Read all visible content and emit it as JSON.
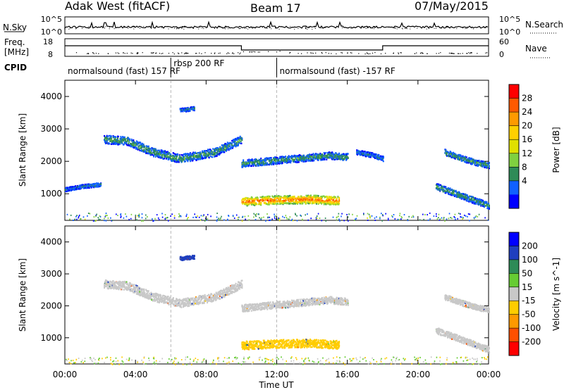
{
  "header": {
    "station": "Adak West (fitACF)",
    "beam": "Beam 17",
    "date": "07/May/2015"
  },
  "side_labels": {
    "nsky": "N.Sky",
    "nsearch": "N.Search",
    "freq_line1": "Freq.",
    "freq_line2": "[MHz]",
    "nave": "Nave",
    "cpid": "CPID"
  },
  "cpid_segments": [
    {
      "label": "normalsound (fast) 157 RF",
      "start_hour": 0,
      "end_hour": 6
    },
    {
      "label": "rbsp 200 RF",
      "start_hour": 6,
      "end_hour": 12
    },
    {
      "label": "normalsound (fast) -157 RF",
      "start_hour": 12,
      "end_hour": 24
    }
  ],
  "noise_axis": {
    "left_ticks": [
      "10^5",
      "10^0"
    ],
    "right_ticks": [
      "10^5",
      "10^0"
    ]
  },
  "freq_axis": {
    "left_ticks": [
      "18",
      "8"
    ],
    "right_ticks": [
      "60",
      "0"
    ]
  },
  "power_colorbar": {
    "label": "Power [dB]",
    "ticks": [
      "28",
      "24",
      "20",
      "16",
      "12",
      "8",
      "4"
    ],
    "colors": [
      "#ff0000",
      "#ff5a00",
      "#ff9a00",
      "#ffd000",
      "#e0e000",
      "#80d040",
      "#2e8b57",
      "#1060ff",
      "#0000ff"
    ]
  },
  "velocity_colorbar": {
    "label": "Velocity [m s^-1]",
    "ticks": [
      "200",
      "100",
      "50",
      "15",
      "-15",
      "-50",
      "-100",
      "-200"
    ],
    "colors": [
      "#0000ff",
      "#1f3fbf",
      "#2e8b57",
      "#66cc33",
      "#c8c8c8",
      "#ffcc00",
      "#ff9900",
      "#ff5000",
      "#ff0000"
    ]
  },
  "chart_data": [
    {
      "type": "heatmap",
      "title": "",
      "xlabel": "",
      "ylabel": "Slant Range [km]",
      "xlim": [
        0,
        24
      ],
      "ylim": [
        180,
        4500
      ],
      "x_ticks": [
        "00:00",
        "04:00",
        "08:00",
        "12:00",
        "16:00",
        "20:00",
        "00:00"
      ],
      "y_ticks": [
        1000,
        2000,
        3000,
        4000
      ],
      "colorbar": "Power [dB]",
      "bands": [
        {
          "x": [
            2.2,
            3.5,
            5,
            6.5,
            8.5,
            10
          ],
          "y": [
            2700,
            2650,
            2300,
            2100,
            2300,
            2700
          ],
          "width": 260,
          "value": 8
        },
        {
          "x": [
            0,
            1,
            2
          ],
          "y": [
            1150,
            1250,
            1300
          ],
          "width": 120,
          "value": 6
        },
        {
          "x": [
            10,
            12,
            14,
            15,
            16
          ],
          "y": [
            1950,
            2050,
            2150,
            2200,
            2150
          ],
          "width": 220,
          "value": 8
        },
        {
          "x": [
            10,
            12,
            14,
            15.5
          ],
          "y": [
            780,
            830,
            850,
            800
          ],
          "width": 260,
          "value": 22
        },
        {
          "x": [
            16.5,
            17.5,
            18
          ],
          "y": [
            2300,
            2200,
            2100
          ],
          "width": 150,
          "value": 6
        },
        {
          "x": [
            21.5,
            22.5,
            23.5,
            24
          ],
          "y": [
            2300,
            2100,
            1950,
            1900
          ],
          "width": 180,
          "value": 8
        },
        {
          "x": [
            21,
            22,
            23,
            24
          ],
          "y": [
            1250,
            1050,
            850,
            650
          ],
          "width": 200,
          "value": 8
        },
        {
          "x": [
            6.5,
            7.3
          ],
          "y": [
            3600,
            3650
          ],
          "width": 120,
          "value": 6
        }
      ]
    },
    {
      "type": "heatmap",
      "title": "",
      "xlabel": "Time UT",
      "ylabel": "Slant Range [km]",
      "xlim": [
        0,
        24
      ],
      "ylim": [
        180,
        4500
      ],
      "x_ticks": [
        "00:00",
        "04:00",
        "08:00",
        "12:00",
        "16:00",
        "20:00",
        "00:00"
      ],
      "y_ticks": [
        1000,
        2000,
        3000,
        4000
      ],
      "colorbar": "Velocity [m s^-1]",
      "bands": [
        {
          "x": [
            2.2,
            3.5,
            5,
            6.5,
            8.5,
            10
          ],
          "y": [
            2700,
            2650,
            2300,
            2100,
            2300,
            2700
          ],
          "width": 260,
          "value": 0
        },
        {
          "x": [
            10,
            12,
            14,
            15,
            16
          ],
          "y": [
            1950,
            2050,
            2150,
            2200,
            2150
          ],
          "width": 220,
          "value": 0
        },
        {
          "x": [
            10,
            12,
            14,
            15.5
          ],
          "y": [
            780,
            830,
            850,
            800
          ],
          "width": 260,
          "value": -40
        },
        {
          "x": [
            21.5,
            22.5,
            23.5,
            24
          ],
          "y": [
            2300,
            2100,
            1950,
            1900
          ],
          "width": 180,
          "value": 0
        },
        {
          "x": [
            21,
            22,
            23,
            24
          ],
          "y": [
            1250,
            1050,
            850,
            650
          ],
          "width": 200,
          "value": 0
        },
        {
          "x": [
            6.5,
            7.3
          ],
          "y": [
            3500,
            3550
          ],
          "width": 120,
          "value": 150
        }
      ]
    }
  ]
}
